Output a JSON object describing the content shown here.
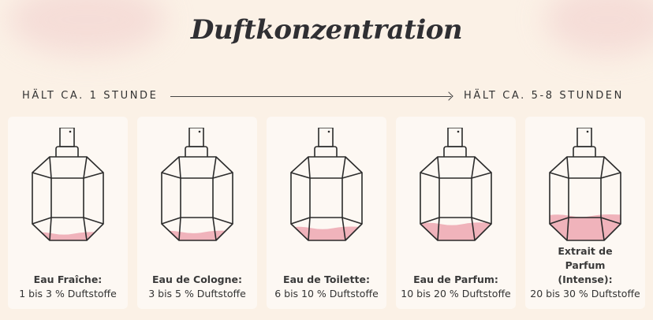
{
  "title": "Duftkonzentration",
  "scale": {
    "left_label": "HÄLT CA. 1 STUNDE",
    "right_label": "HÄLT CA. 5-8 STUNDEN"
  },
  "colors": {
    "background": "#fbf1e6",
    "card": "#fdf8f3",
    "liquid": "#f0b3bb",
    "outline": "#2b2b2b"
  },
  "bottles": [
    {
      "name": "Eau Fraîche:",
      "detail": "1 bis 3 % Duftstoffe",
      "fill_level": 0.08
    },
    {
      "name": "Eau de Cologne:",
      "detail": "3 bis 5 % Duftstoffe",
      "fill_level": 0.1
    },
    {
      "name": "Eau de Toilette:",
      "detail": "6 bis 10 % Duftstoffe",
      "fill_level": 0.16
    },
    {
      "name": "Eau de Parfum:",
      "detail": "10 bis 20 % Duftstoffe",
      "fill_level": 0.22
    },
    {
      "name": "Extrait de Parfum (Intense):",
      "detail": "20 bis 30 % Duftstoffe",
      "fill_level": 0.34
    }
  ]
}
